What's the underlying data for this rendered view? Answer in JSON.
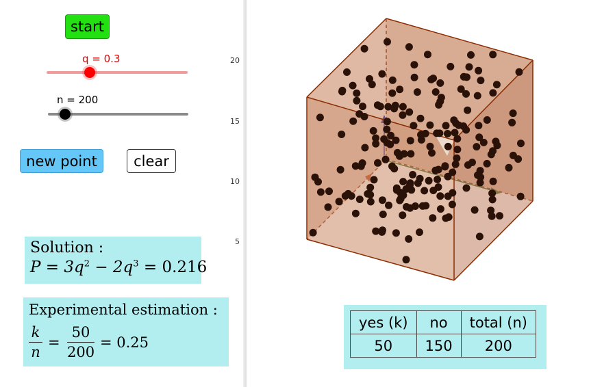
{
  "controls": {
    "start_label": "start",
    "q_label": "q = 0.3",
    "n_label": "n = 200",
    "new_point_label": "new point",
    "clear_label": "clear"
  },
  "sliders": {
    "q": {
      "value": 0.3,
      "color": "#ff0000"
    },
    "n": {
      "value": 200,
      "color": "#000000"
    }
  },
  "axis_ticks": [
    "20",
    "15",
    "10",
    "5"
  ],
  "solution": {
    "title": "Solution :",
    "formula_lhs": "P = 3q",
    "formula_mid": " − 2q",
    "formula_rhs": " = 0.216",
    "exp_2": "2",
    "exp_3": "3"
  },
  "experimental": {
    "title": "Experimental estimation :",
    "frac1_num": "k",
    "frac1_den": "n",
    "frac2_num": "50",
    "frac2_den": "200",
    "result": "= 0.25"
  },
  "table": {
    "headers": [
      "yes (k)",
      "no",
      "total (n)"
    ],
    "values": [
      "50",
      "150",
      "200"
    ]
  },
  "colors": {
    "cube_face": "#c98a66",
    "cube_edge": "#8b2c00",
    "point": "#2b1208",
    "box_bg": "#b2edef"
  }
}
